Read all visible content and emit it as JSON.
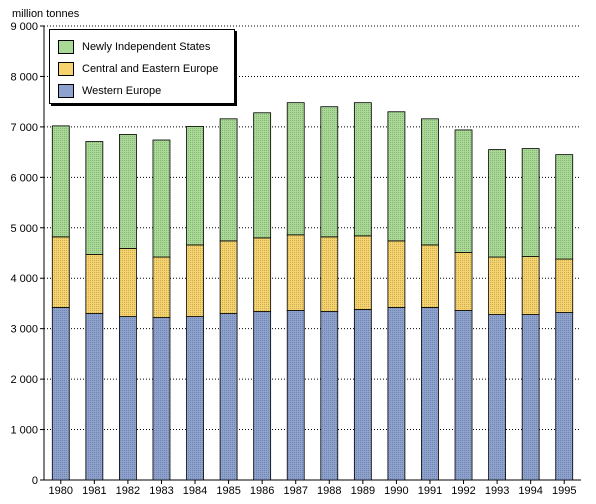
{
  "chart_data": {
    "type": "bar",
    "stacked": true,
    "ylabel": "million tonnes",
    "ylim": [
      0,
      9000
    ],
    "yticks": [
      0,
      1000,
      2000,
      3000,
      4000,
      5000,
      6000,
      7000,
      8000,
      9000
    ],
    "ytick_labels": [
      "0",
      "1 000",
      "2 000",
      "3 000",
      "4 000",
      "5 000",
      "6 000",
      "7 000",
      "8 000",
      "9 000"
    ],
    "grid": "horizontal dotted",
    "legend_position": "top-left",
    "categories": [
      "1980",
      "1981",
      "1982",
      "1983",
      "1984",
      "1985",
      "1986",
      "1987",
      "1988",
      "1989",
      "1990",
      "1991",
      "1992",
      "1993",
      "1994",
      "1995"
    ],
    "series": [
      {
        "name": "Western Europe",
        "color": "#8ea2cf",
        "values": [
          3420,
          3300,
          3240,
          3220,
          3240,
          3300,
          3340,
          3360,
          3340,
          3380,
          3420,
          3420,
          3360,
          3280,
          3280,
          3320
        ]
      },
      {
        "name": "Central and Eastern Europe",
        "color": "#f6d36d",
        "values": [
          1400,
          1170,
          1350,
          1200,
          1420,
          1440,
          1460,
          1500,
          1480,
          1460,
          1320,
          1240,
          1150,
          1140,
          1150,
          1060
        ]
      },
      {
        "name": "Newly Independent States",
        "color": "#a8d995",
        "values": [
          2200,
          2240,
          2260,
          2320,
          2350,
          2420,
          2480,
          2620,
          2580,
          2640,
          2560,
          2500,
          2430,
          2130,
          2140,
          2070
        ]
      }
    ]
  },
  "legend": {
    "items": [
      {
        "label": "Newly Independent States",
        "color": "#a8d995"
      },
      {
        "label": "Central and Eastern Europe",
        "color": "#f6d36d"
      },
      {
        "label": "Western Europe",
        "color": "#8ea2cf"
      }
    ]
  }
}
